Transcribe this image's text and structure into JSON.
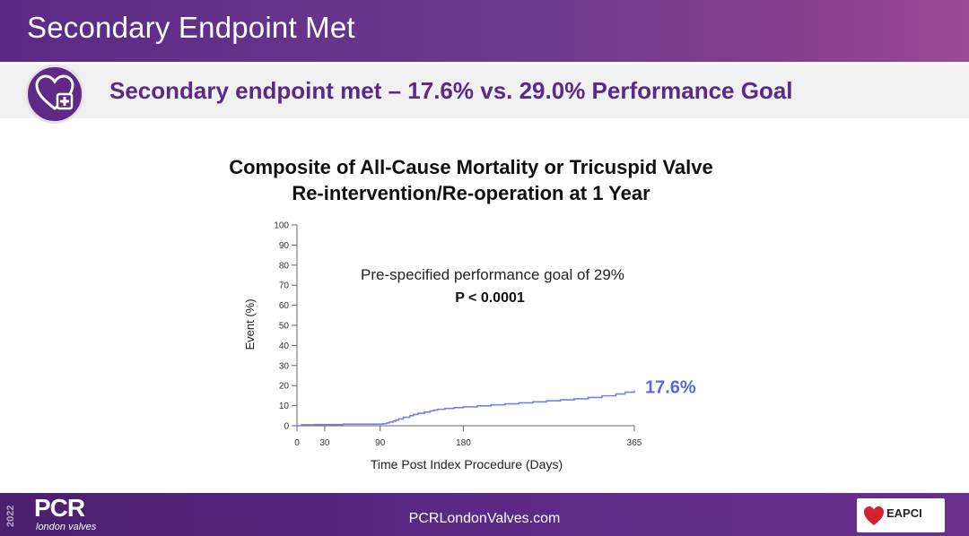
{
  "header": {
    "title": "Secondary Endpoint Met"
  },
  "subtitle": {
    "text": "Secondary endpoint met – 17.6% vs. 29.0% Performance Goal",
    "icon": "heart-plus-icon"
  },
  "chart_data": {
    "type": "line",
    "title": "Composite of All-Cause Mortality or Tricuspid Valve Re-intervention/Re-operation at 1 Year",
    "title_lines": [
      "Composite of All-Cause Mortality or Tricuspid Valve",
      "Re-intervention/Re-operation at 1 Year"
    ],
    "xlabel": "Time Post Index Procedure (Days)",
    "ylabel": "Event (%)",
    "xlim": [
      0,
      365
    ],
    "ylim": [
      0,
      100
    ],
    "x_ticks": [
      0,
      30,
      90,
      180,
      365
    ],
    "y_ticks": [
      0,
      10,
      20,
      30,
      40,
      50,
      60,
      70,
      80,
      90,
      100
    ],
    "grid": false,
    "series": [
      {
        "x": [
          0,
          5,
          20,
          50,
          93,
          97,
          100,
          104,
          107,
          110,
          115,
          122,
          126,
          131,
          138,
          144,
          148,
          152,
          160,
          170,
          180,
          195,
          210,
          225,
          240,
          255,
          270,
          285,
          300,
          315,
          330,
          345,
          355,
          365
        ],
        "y": [
          0,
          0.5,
          0.6,
          0.8,
          1.0,
          1.4,
          1.8,
          2.3,
          2.8,
          3.4,
          4.2,
          5.0,
          5.6,
          6.2,
          6.8,
          7.4,
          7.8,
          8.2,
          8.6,
          9.0,
          9.4,
          9.9,
          10.4,
          10.9,
          11.4,
          11.9,
          12.4,
          12.9,
          13.4,
          14.1,
          14.9,
          15.8,
          16.7,
          17.6
        ],
        "end_label": "17.6%"
      }
    ],
    "annotations": [
      "Pre-specified performance goal of 29%",
      "P < 0.0001"
    ],
    "colors": {
      "line": "#7b80e0",
      "end_label": "#5b67d8"
    }
  },
  "footer": {
    "year": "2022",
    "brand": "PCR",
    "brand_sub": "london valves",
    "url": "PCRLondonValves.com",
    "logo": "EAPCI"
  }
}
